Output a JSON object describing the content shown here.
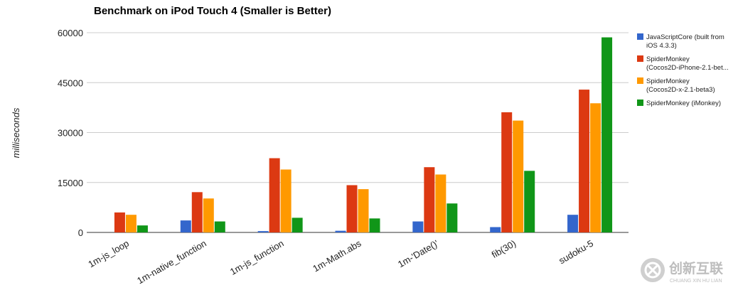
{
  "chart_data": {
    "type": "bar",
    "title": "Benchmark on iPod Touch 4 (Smaller is Better)",
    "xlabel": "",
    "ylabel": "milliseconds",
    "ylim": [
      0,
      60000
    ],
    "yticks": [
      0,
      15000,
      30000,
      45000,
      60000
    ],
    "grid": true,
    "legend_position": "right",
    "categories": [
      "1m-js_loop",
      "1m-native_function",
      "1m-js_function",
      "1m-Math.abs",
      "1m-'Date()'",
      "fib(30)",
      "sudoku-5"
    ],
    "series": [
      {
        "name": "JavaScriptCore (built from iOS 4.3.3)",
        "legend_lines": [
          "JavaScriptCore (built from",
          "iOS 4.3.3)"
        ],
        "color": "#3366cc",
        "values": [
          0,
          3600,
          400,
          500,
          3300,
          1600,
          5300
        ]
      },
      {
        "name": "SpiderMonkey (Cocos2D-iPhone-2.1-bet...",
        "legend_lines": [
          "SpiderMonkey",
          "(Cocos2D-iPhone-2.1-bet..."
        ],
        "color": "#dc3912",
        "values": [
          6000,
          12100,
          22300,
          14200,
          19600,
          36100,
          42900
        ]
      },
      {
        "name": "SpiderMonkey (Cocos2D-x-2.1-beta3)",
        "legend_lines": [
          "SpiderMonkey",
          "(Cocos2D-x-2.1-beta3)"
        ],
        "color": "#ff9900",
        "values": [
          5300,
          10200,
          18900,
          13000,
          17400,
          33600,
          38800
        ]
      },
      {
        "name": "SpiderMonkey (iMonkey)",
        "legend_lines": [
          "SpiderMonkey (iMonkey)"
        ],
        "color": "#109618",
        "values": [
          2100,
          3300,
          4400,
          4200,
          8700,
          18500,
          58600
        ]
      }
    ]
  },
  "watermark": {
    "text_cn": "创新互联",
    "text_en": "CHUANG XIN HU LIAN"
  }
}
